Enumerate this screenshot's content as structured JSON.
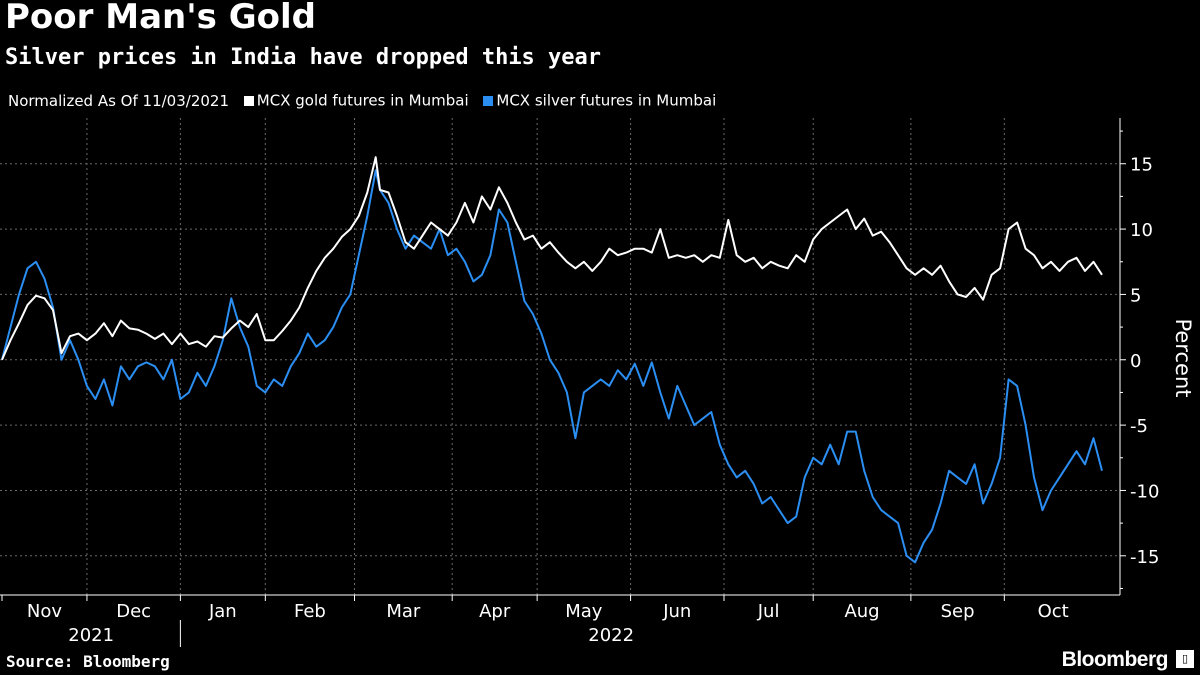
{
  "header": {
    "title": "Poor Man's Gold",
    "subtitle": "Silver prices in India have dropped this year"
  },
  "legend": {
    "note": "Normalized As Of 11/03/2021",
    "items": [
      {
        "label": "MCX gold futures in Mumbai",
        "color": "#ffffff"
      },
      {
        "label": "MCX silver futures in Mumbai",
        "color": "#2b8ef2"
      }
    ]
  },
  "footer": {
    "source": "Source: Bloomberg",
    "brand": "Bloomberg"
  },
  "chart_data": {
    "type": "line",
    "ylabel": "Percent",
    "ylim": [
      -18,
      18.5
    ],
    "yticks": [
      15,
      10,
      5,
      0,
      -5,
      -10,
      -15
    ],
    "xlim": [
      0,
      259
    ],
    "months": [
      {
        "label": "Nov",
        "start": 0,
        "end": 20
      },
      {
        "label": "Dec",
        "start": 20,
        "end": 42
      },
      {
        "label": "Jan",
        "start": 42,
        "end": 62
      },
      {
        "label": "Feb",
        "start": 62,
        "end": 83
      },
      {
        "label": "Mar",
        "start": 83,
        "end": 106
      },
      {
        "label": "Apr",
        "start": 106,
        "end": 126
      },
      {
        "label": "May",
        "start": 126,
        "end": 148
      },
      {
        "label": "Jun",
        "start": 148,
        "end": 170
      },
      {
        "label": "Jul",
        "start": 170,
        "end": 191
      },
      {
        "label": "Aug",
        "start": 191,
        "end": 214
      },
      {
        "label": "Sep",
        "start": 214,
        "end": 236
      },
      {
        "label": "Oct",
        "start": 236,
        "end": 259
      }
    ],
    "years": [
      {
        "label": "2021",
        "start": 0,
        "end": 42
      },
      {
        "label": "2022",
        "start": 42,
        "end": 259
      }
    ],
    "series": [
      {
        "name": "MCX gold futures in Mumbai",
        "color": "#ffffff",
        "keypoints": [
          [
            0,
            0.0
          ],
          [
            2,
            1.5
          ],
          [
            4,
            2.8
          ],
          [
            6,
            4.2
          ],
          [
            8,
            4.9
          ],
          [
            10,
            4.7
          ],
          [
            12,
            3.8
          ],
          [
            14,
            0.5
          ],
          [
            16,
            1.8
          ],
          [
            18,
            2.0
          ],
          [
            20,
            1.5
          ],
          [
            22,
            2.0
          ],
          [
            24,
            2.8
          ],
          [
            26,
            1.8
          ],
          [
            28,
            3.0
          ],
          [
            30,
            2.4
          ],
          [
            32,
            2.3
          ],
          [
            34,
            2.0
          ],
          [
            36,
            1.6
          ],
          [
            38,
            2.0
          ],
          [
            40,
            1.2
          ],
          [
            42,
            2.0
          ],
          [
            44,
            1.2
          ],
          [
            46,
            1.4
          ],
          [
            48,
            1.0
          ],
          [
            50,
            1.8
          ],
          [
            52,
            1.7
          ],
          [
            54,
            2.4
          ],
          [
            56,
            3.0
          ],
          [
            58,
            2.5
          ],
          [
            60,
            3.5
          ],
          [
            62,
            1.5
          ],
          [
            64,
            1.5
          ],
          [
            66,
            2.2
          ],
          [
            68,
            3.0
          ],
          [
            70,
            4.0
          ],
          [
            72,
            5.5
          ],
          [
            74,
            6.8
          ],
          [
            76,
            7.8
          ],
          [
            78,
            8.5
          ],
          [
            80,
            9.4
          ],
          [
            82,
            10.0
          ],
          [
            84,
            11.0
          ],
          [
            86,
            12.8
          ],
          [
            88,
            15.5
          ],
          [
            89,
            13.0
          ],
          [
            91,
            12.8
          ],
          [
            93,
            11.0
          ],
          [
            95,
            9.0
          ],
          [
            97,
            8.5
          ],
          [
            99,
            9.5
          ],
          [
            101,
            10.5
          ],
          [
            103,
            10.0
          ],
          [
            105,
            9.5
          ],
          [
            107,
            10.5
          ],
          [
            109,
            12.0
          ],
          [
            111,
            10.5
          ],
          [
            113,
            12.5
          ],
          [
            115,
            11.5
          ],
          [
            117,
            13.2
          ],
          [
            119,
            12.0
          ],
          [
            121,
            10.5
          ],
          [
            123,
            9.2
          ],
          [
            125,
            9.5
          ],
          [
            127,
            8.5
          ],
          [
            129,
            9.0
          ],
          [
            131,
            8.2
          ],
          [
            133,
            7.5
          ],
          [
            135,
            7.0
          ],
          [
            137,
            7.5
          ],
          [
            139,
            6.8
          ],
          [
            141,
            7.5
          ],
          [
            143,
            8.5
          ],
          [
            145,
            8.0
          ],
          [
            147,
            8.2
          ],
          [
            149,
            8.5
          ],
          [
            151,
            8.5
          ],
          [
            153,
            8.2
          ],
          [
            155,
            10.0
          ],
          [
            157,
            7.8
          ],
          [
            159,
            8.0
          ],
          [
            161,
            7.8
          ],
          [
            163,
            8.0
          ],
          [
            165,
            7.5
          ],
          [
            167,
            8.0
          ],
          [
            169,
            7.8
          ],
          [
            171,
            10.7
          ],
          [
            173,
            8.0
          ],
          [
            175,
            7.5
          ],
          [
            177,
            7.8
          ],
          [
            179,
            7.0
          ],
          [
            181,
            7.5
          ],
          [
            183,
            7.2
          ],
          [
            185,
            7.0
          ],
          [
            187,
            8.0
          ],
          [
            189,
            7.5
          ],
          [
            191,
            9.2
          ],
          [
            193,
            10.0
          ],
          [
            195,
            10.5
          ],
          [
            197,
            11.0
          ],
          [
            199,
            11.5
          ],
          [
            201,
            10.0
          ],
          [
            203,
            10.8
          ],
          [
            205,
            9.5
          ],
          [
            207,
            9.8
          ],
          [
            209,
            9.0
          ],
          [
            211,
            8.0
          ],
          [
            213,
            7.0
          ],
          [
            215,
            6.5
          ],
          [
            217,
            7.0
          ],
          [
            219,
            6.5
          ],
          [
            221,
            7.2
          ],
          [
            223,
            6.0
          ],
          [
            225,
            5.0
          ],
          [
            227,
            4.8
          ],
          [
            229,
            5.5
          ],
          [
            231,
            4.6
          ],
          [
            233,
            6.5
          ],
          [
            235,
            7.0
          ],
          [
            237,
            10.0
          ],
          [
            239,
            10.5
          ],
          [
            241,
            8.5
          ],
          [
            243,
            8.0
          ],
          [
            245,
            7.0
          ],
          [
            247,
            7.5
          ],
          [
            249,
            6.8
          ],
          [
            251,
            7.5
          ],
          [
            253,
            7.8
          ],
          [
            255,
            6.8
          ],
          [
            257,
            7.5
          ],
          [
            259,
            6.5
          ]
        ]
      },
      {
        "name": "MCX silver futures in Mumbai",
        "color": "#2b8ef2",
        "keypoints": [
          [
            0,
            0.0
          ],
          [
            2,
            2.5
          ],
          [
            4,
            5.0
          ],
          [
            6,
            7.0
          ],
          [
            8,
            7.5
          ],
          [
            10,
            6.2
          ],
          [
            12,
            4.0
          ],
          [
            14,
            0.0
          ],
          [
            16,
            1.5
          ],
          [
            18,
            0.0
          ],
          [
            20,
            -2.0
          ],
          [
            22,
            -3.0
          ],
          [
            24,
            -1.5
          ],
          [
            26,
            -3.5
          ],
          [
            28,
            -0.5
          ],
          [
            30,
            -1.5
          ],
          [
            32,
            -0.5
          ],
          [
            34,
            -0.2
          ],
          [
            36,
            -0.5
          ],
          [
            38,
            -1.5
          ],
          [
            40,
            0.0
          ],
          [
            42,
            -3.0
          ],
          [
            44,
            -2.5
          ],
          [
            46,
            -1.0
          ],
          [
            48,
            -2.0
          ],
          [
            50,
            -0.5
          ],
          [
            52,
            1.5
          ],
          [
            54,
            4.7
          ],
          [
            56,
            2.5
          ],
          [
            58,
            1.0
          ],
          [
            60,
            -2.0
          ],
          [
            62,
            -2.5
          ],
          [
            64,
            -1.5
          ],
          [
            66,
            -2.0
          ],
          [
            68,
            -0.5
          ],
          [
            70,
            0.5
          ],
          [
            72,
            2.0
          ],
          [
            74,
            1.0
          ],
          [
            76,
            1.5
          ],
          [
            78,
            2.5
          ],
          [
            80,
            4.0
          ],
          [
            82,
            5.0
          ],
          [
            84,
            8.0
          ],
          [
            86,
            11.0
          ],
          [
            88,
            14.5
          ],
          [
            89,
            13.0
          ],
          [
            91,
            12.0
          ],
          [
            93,
            10.0
          ],
          [
            95,
            8.5
          ],
          [
            97,
            9.5
          ],
          [
            99,
            9.0
          ],
          [
            101,
            8.5
          ],
          [
            103,
            10.0
          ],
          [
            105,
            8.0
          ],
          [
            107,
            8.5
          ],
          [
            109,
            7.5
          ],
          [
            111,
            6.0
          ],
          [
            113,
            6.5
          ],
          [
            115,
            8.0
          ],
          [
            117,
            11.5
          ],
          [
            119,
            10.5
          ],
          [
            121,
            7.5
          ],
          [
            123,
            4.5
          ],
          [
            125,
            3.5
          ],
          [
            127,
            2.0
          ],
          [
            129,
            0.0
          ],
          [
            131,
            -1.0
          ],
          [
            133,
            -2.5
          ],
          [
            135,
            -6.0
          ],
          [
            137,
            -2.5
          ],
          [
            139,
            -2.0
          ],
          [
            141,
            -1.5
          ],
          [
            143,
            -2.0
          ],
          [
            145,
            -0.8
          ],
          [
            147,
            -1.5
          ],
          [
            149,
            -0.3
          ],
          [
            151,
            -2.0
          ],
          [
            153,
            -0.2
          ],
          [
            155,
            -2.5
          ],
          [
            157,
            -4.5
          ],
          [
            159,
            -2.0
          ],
          [
            161,
            -3.5
          ],
          [
            163,
            -5.0
          ],
          [
            165,
            -4.5
          ],
          [
            167,
            -4.0
          ],
          [
            169,
            -6.5
          ],
          [
            171,
            -8.0
          ],
          [
            173,
            -9.0
          ],
          [
            175,
            -8.5
          ],
          [
            177,
            -9.5
          ],
          [
            179,
            -11.0
          ],
          [
            181,
            -10.5
          ],
          [
            183,
            -11.5
          ],
          [
            185,
            -12.5
          ],
          [
            187,
            -12.0
          ],
          [
            189,
            -9.0
          ],
          [
            191,
            -7.5
          ],
          [
            193,
            -8.0
          ],
          [
            195,
            -6.5
          ],
          [
            197,
            -8.0
          ],
          [
            199,
            -5.5
          ],
          [
            201,
            -5.5
          ],
          [
            203,
            -8.5
          ],
          [
            205,
            -10.5
          ],
          [
            207,
            -11.5
          ],
          [
            209,
            -12.0
          ],
          [
            211,
            -12.5
          ],
          [
            213,
            -15.0
          ],
          [
            215,
            -15.5
          ],
          [
            217,
            -14.0
          ],
          [
            219,
            -13.0
          ],
          [
            221,
            -11.0
          ],
          [
            223,
            -8.5
          ],
          [
            225,
            -9.0
          ],
          [
            227,
            -9.5
          ],
          [
            229,
            -8.0
          ],
          [
            231,
            -11.0
          ],
          [
            233,
            -9.5
          ],
          [
            235,
            -7.5
          ],
          [
            237,
            -1.5
          ],
          [
            239,
            -2.0
          ],
          [
            241,
            -5.0
          ],
          [
            243,
            -9.0
          ],
          [
            245,
            -11.5
          ],
          [
            247,
            -10.0
          ],
          [
            249,
            -9.0
          ],
          [
            251,
            -8.0
          ],
          [
            253,
            -7.0
          ],
          [
            255,
            -8.0
          ],
          [
            257,
            -6.0
          ],
          [
            259,
            -8.5
          ]
        ]
      }
    ]
  }
}
